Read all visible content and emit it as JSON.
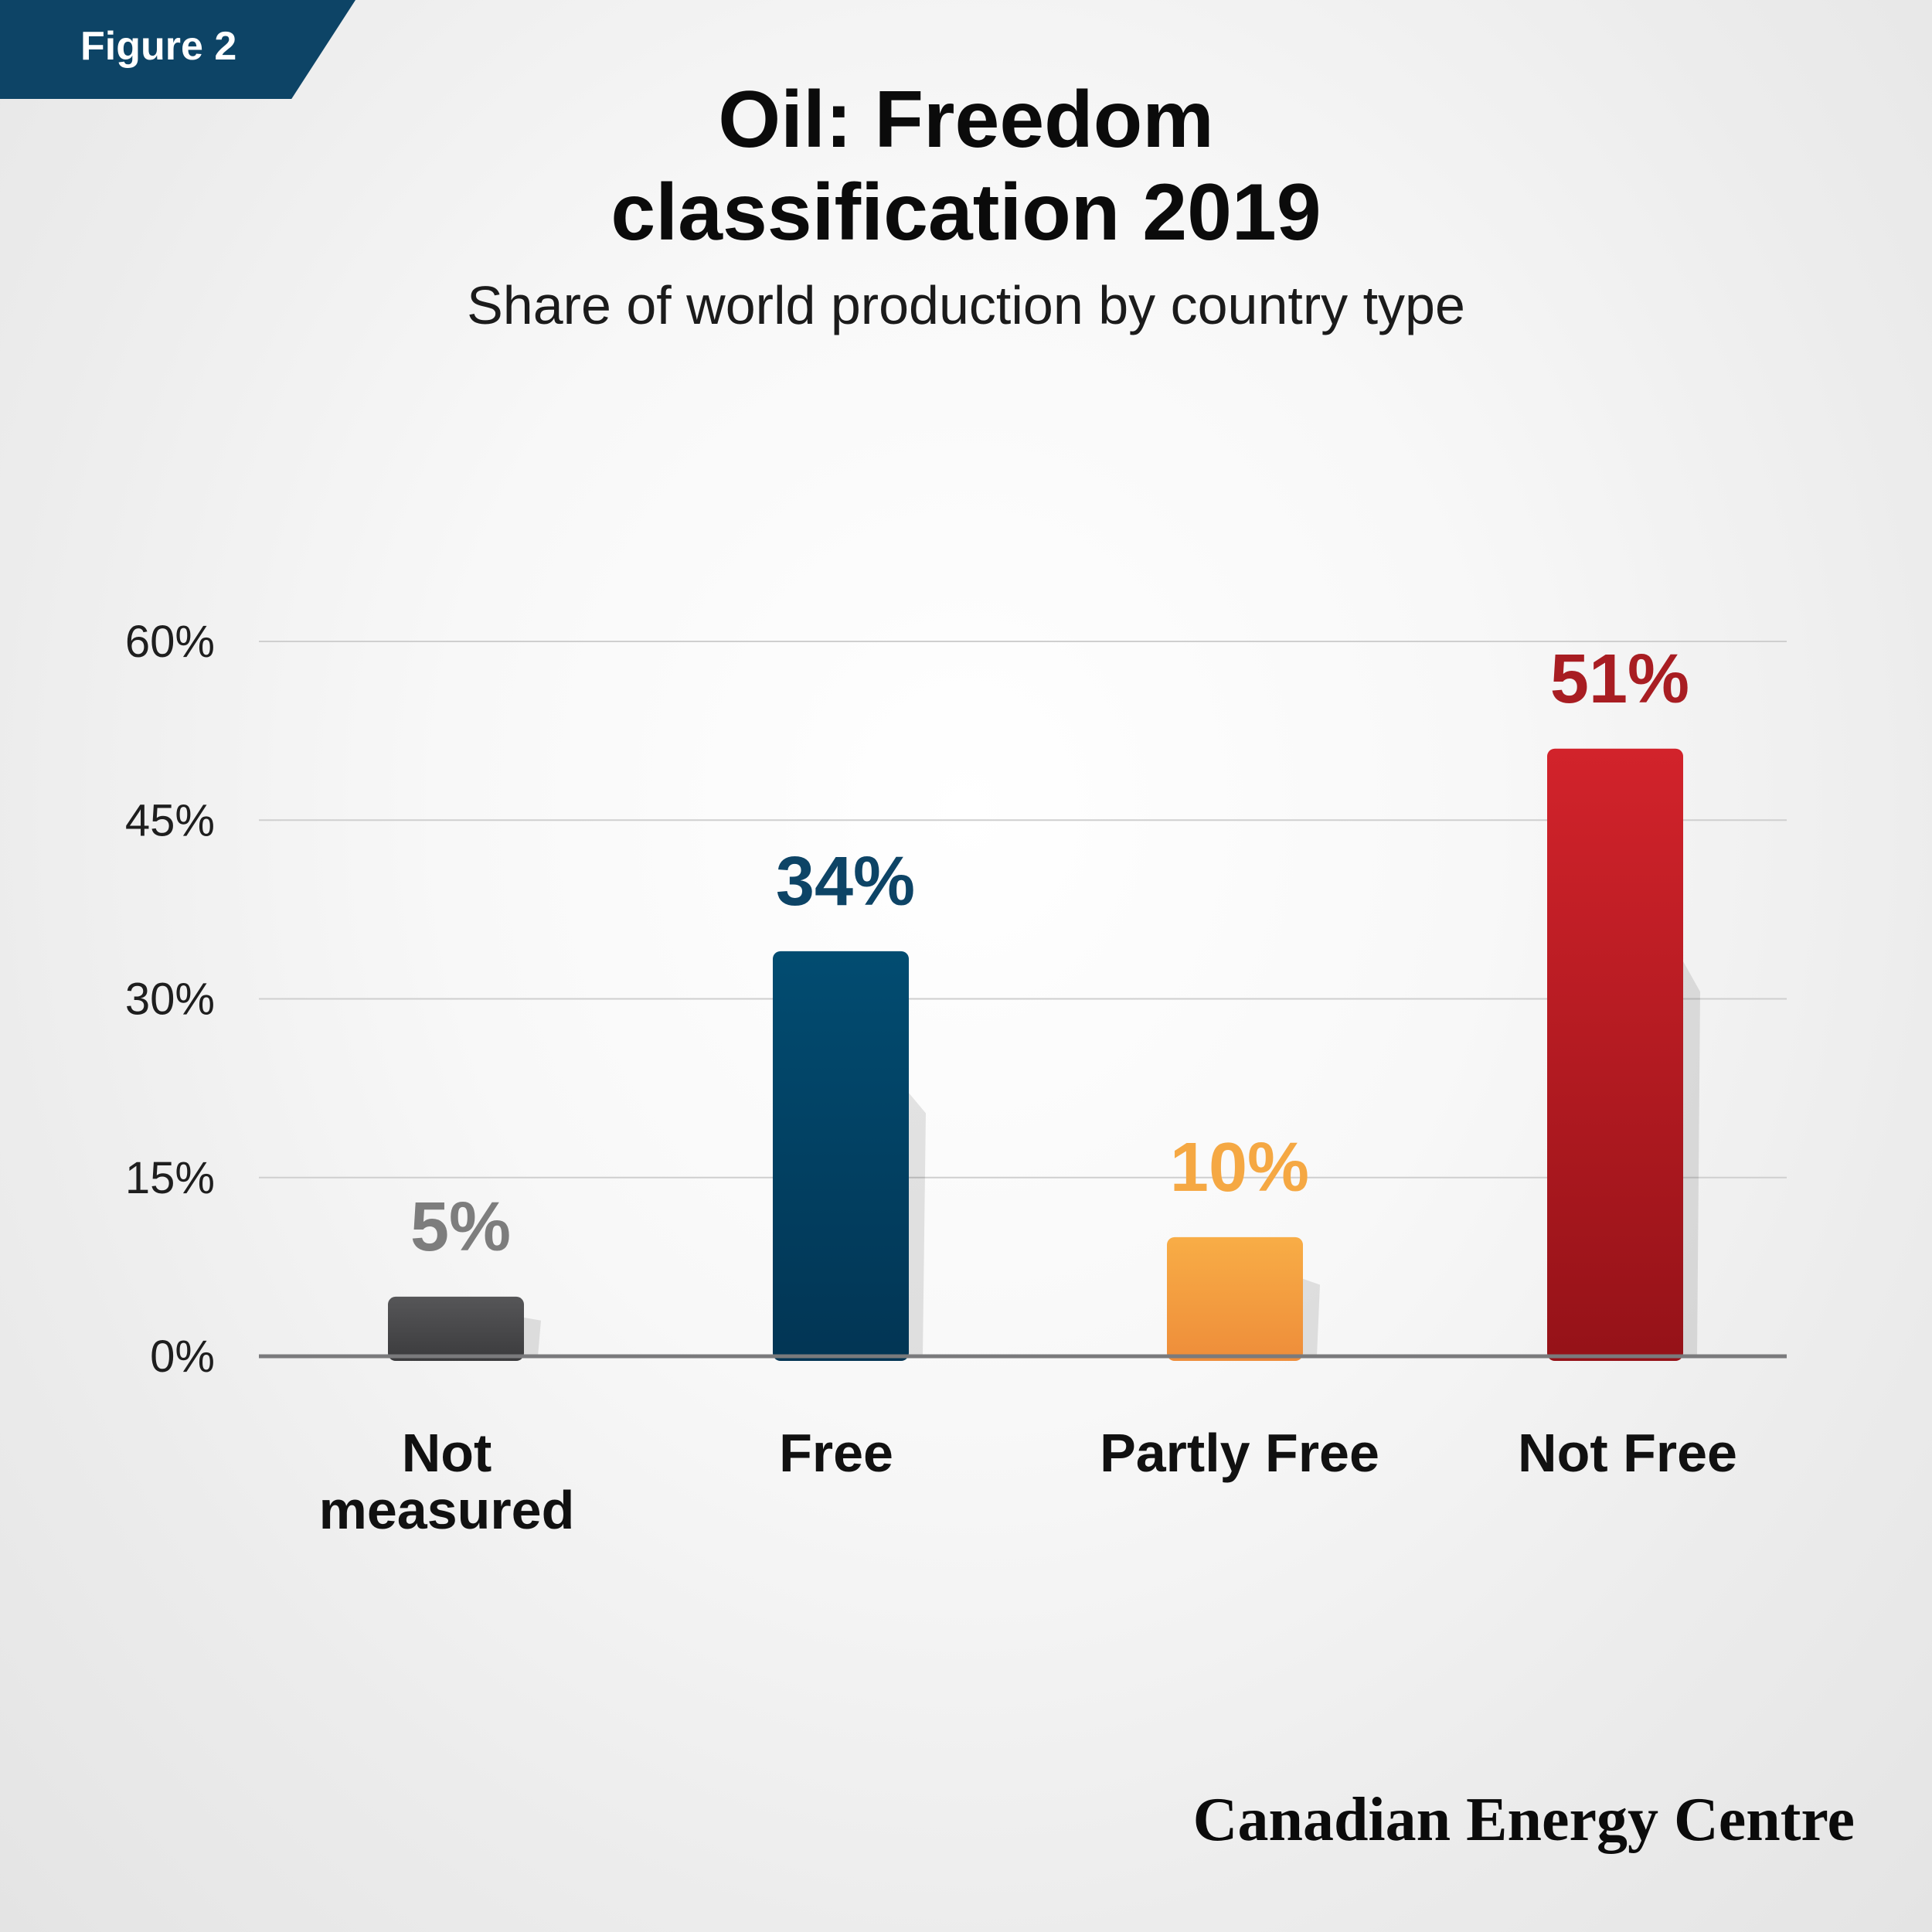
{
  "figure_label": "Figure 2",
  "title_lines": [
    "Oil: Freedom",
    "classification 2019"
  ],
  "subtitle": "Share of world production by country type",
  "brand": "Canadian Energy Centre",
  "colors": {
    "Not measured": "#4a4a4c",
    "Free": "#0a4a6e",
    "Partly Free": "#f3a33f",
    "Not Free": "#be1e24",
    "label_not_measured": "#7d7d7d",
    "label_free": "#0d4466",
    "label_partly_free": "#f5a843",
    "label_not_free": "#a81d22"
  },
  "chart_data": {
    "type": "bar",
    "categories": [
      "Not\nmeasured",
      "Free",
      "Partly Free",
      "Not Free"
    ],
    "values": [
      5,
      34,
      10,
      51
    ],
    "value_labels": [
      "5%",
      "34%",
      "10%",
      "51%"
    ],
    "yticks": [
      0,
      15,
      30,
      45,
      60
    ],
    "ytick_labels": [
      "0%",
      "15%",
      "30%",
      "45%",
      "60%"
    ],
    "ylim": [
      0,
      60
    ],
    "grid": true,
    "legend": "none"
  }
}
